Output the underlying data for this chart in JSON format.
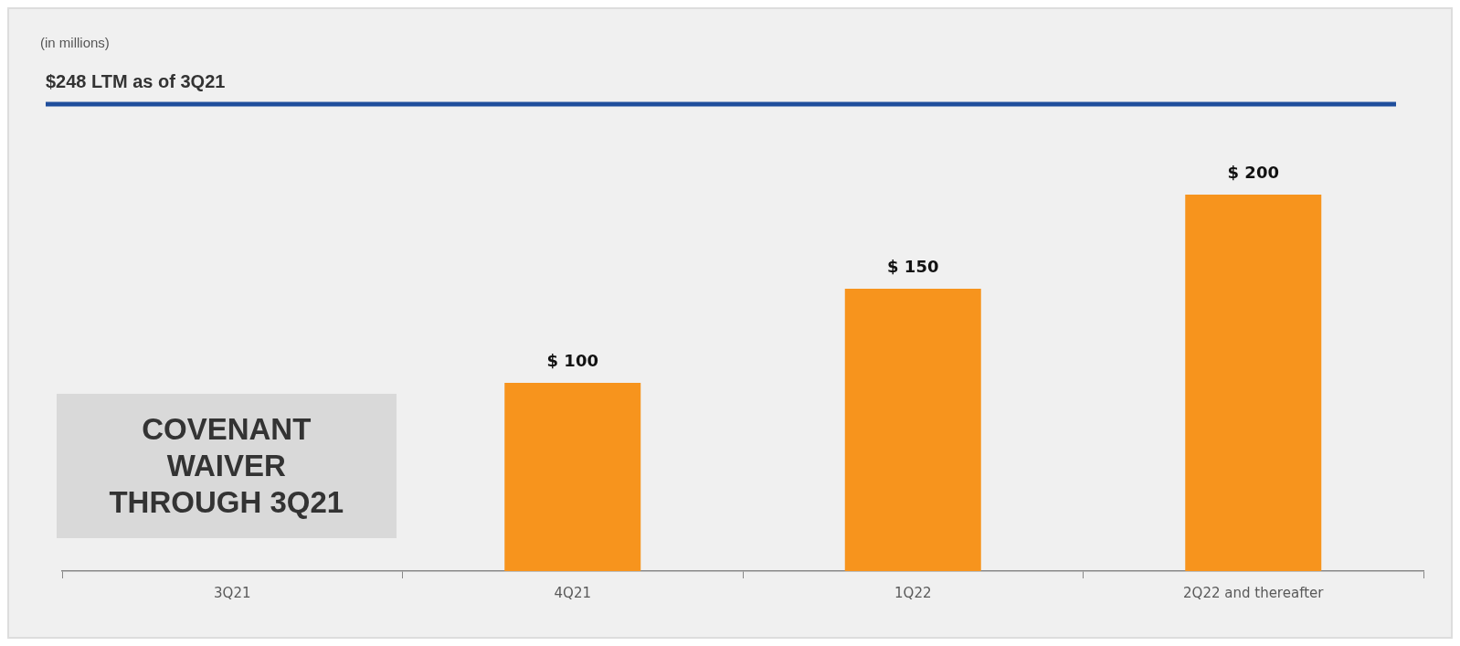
{
  "chart_data": {
    "type": "bar",
    "categories": [
      "3Q21",
      "4Q21",
      "1Q22",
      "2Q22 and thereafter"
    ],
    "values": [
      null,
      100,
      150,
      200
    ],
    "color": "#f7941d",
    "value_labels": [
      null,
      "$ 100",
      "$ 150",
      "$ 200"
    ],
    "ref_lines": [
      {
        "axis": "y",
        "value": 248,
        "label": "$248 LTM as of 3Q21",
        "color": "#1f4e9c"
      }
    ],
    "annotations": [
      "(in millions)",
      "COVENANT WAIVER THROUGH 3Q21"
    ],
    "grid": false,
    "legend": false
  }
}
